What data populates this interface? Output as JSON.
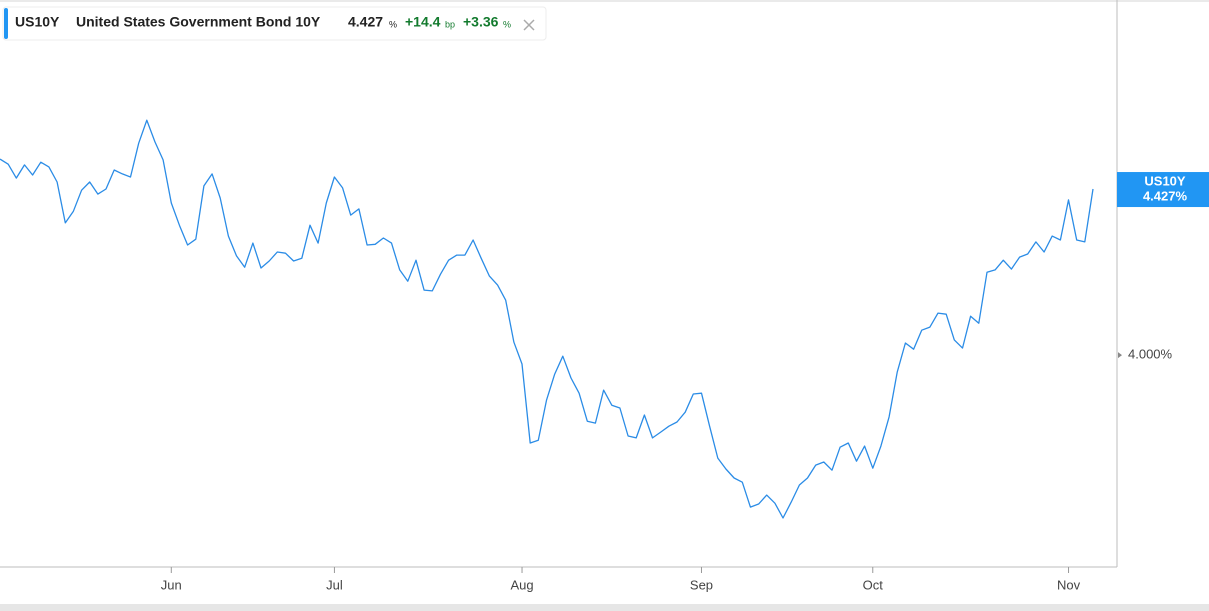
{
  "chart_data": {
    "type": "line",
    "header": {
      "symbol": "US10Y",
      "name": "United States Government Bond 10Y",
      "price": "4.427",
      "price_unit": "%",
      "change": "+14.4",
      "change_unit": "bp",
      "change_pct": "+3.36",
      "change_pct_unit": "%"
    },
    "last_label": {
      "symbol": "US10Y",
      "value_label": "4.427%"
    },
    "series": [
      {
        "name": "US10Y",
        "color": "#2b8ce6",
        "values": [
          4.504,
          4.491,
          4.455,
          4.489,
          4.463,
          4.496,
          4.484,
          4.445,
          4.34,
          4.37,
          4.424,
          4.445,
          4.414,
          4.427,
          4.476,
          4.466,
          4.458,
          4.545,
          4.604,
          4.548,
          4.502,
          4.391,
          4.334,
          4.283,
          4.298,
          4.435,
          4.466,
          4.404,
          4.306,
          4.255,
          4.226,
          4.288,
          4.224,
          4.242,
          4.265,
          4.262,
          4.242,
          4.249,
          4.334,
          4.288,
          4.391,
          4.458,
          4.43,
          4.36,
          4.376,
          4.283,
          4.285,
          4.301,
          4.288,
          4.219,
          4.19,
          4.244,
          4.167,
          4.165,
          4.208,
          4.244,
          4.257,
          4.257,
          4.296,
          4.249,
          4.203,
          4.18,
          4.141,
          4.033,
          3.977,
          3.774,
          3.781,
          3.884,
          3.951,
          3.997,
          3.941,
          3.902,
          3.83,
          3.825,
          3.91,
          3.871,
          3.864,
          3.792,
          3.787,
          3.846,
          3.787,
          3.802,
          3.817,
          3.828,
          3.853,
          3.9,
          3.902,
          3.817,
          3.735,
          3.707,
          3.684,
          3.673,
          3.609,
          3.617,
          3.64,
          3.619,
          3.581,
          3.622,
          3.666,
          3.684,
          3.717,
          3.725,
          3.704,
          3.763,
          3.774,
          3.727,
          3.766,
          3.709,
          3.766,
          3.841,
          3.956,
          4.031,
          4.015,
          4.064,
          4.072,
          4.108,
          4.105,
          4.039,
          4.018,
          4.1,
          4.082,
          4.213,
          4.219,
          4.244,
          4.221,
          4.252,
          4.26,
          4.291,
          4.265,
          4.306,
          4.296,
          4.399,
          4.296,
          4.291,
          4.427
        ]
      }
    ],
    "xlim": [
      0,
      134
    ],
    "xticks": [
      {
        "value": 21,
        "label": "Jun"
      },
      {
        "value": 41,
        "label": "Jul"
      },
      {
        "value": 64,
        "label": "Aug"
      },
      {
        "value": 86,
        "label": "Sep"
      },
      {
        "value": 107,
        "label": "Oct"
      },
      {
        "value": 131,
        "label": "Nov"
      }
    ],
    "ylim": [
      3.455,
      4.908
    ],
    "yticks": [
      {
        "value": 4,
        "label": "4.000%"
      }
    ],
    "grid": false
  }
}
